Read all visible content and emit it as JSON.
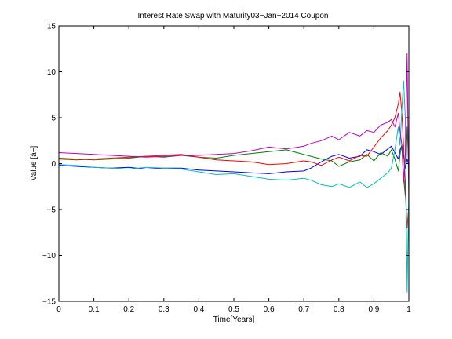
{
  "chart_data": {
    "type": "line",
    "title": "Interest Rate Swap with Maturity03−Jan−2014 Coupon",
    "xlabel": "Time[Years]",
    "ylabel": "Value [â−]",
    "xlim": [
      0,
      1
    ],
    "ylim": [
      -15,
      15
    ],
    "xticks": [
      0,
      0.1,
      0.2,
      0.3,
      0.4,
      0.5,
      0.6,
      0.7,
      0.8,
      0.9,
      1
    ],
    "xtick_labels": [
      "0",
      "0.1",
      "0.2",
      "0.3",
      "0.4",
      "0.5",
      "0.6",
      "0.7",
      "0.8",
      "0.9",
      "1"
    ],
    "yticks": [
      -15,
      -10,
      -5,
      0,
      5,
      10,
      15
    ],
    "ytick_labels": [
      "−15",
      "−10",
      "−5",
      "0",
      "5",
      "10",
      "15"
    ],
    "grid": false,
    "legend": "none",
    "series": [
      {
        "color": "#0000ff",
        "x": [
          0,
          0.05,
          0.1,
          0.15,
          0.2,
          0.25,
          0.3,
          0.35,
          0.4,
          0.45,
          0.5,
          0.55,
          0.6,
          0.65,
          0.7,
          0.72,
          0.75,
          0.78,
          0.8,
          0.83,
          0.86,
          0.88,
          0.9,
          0.92,
          0.94,
          0.95,
          0.96,
          0.97,
          0.975,
          0.98,
          0.985,
          0.99,
          0.995,
          1
        ],
        "y": [
          -0.2,
          -0.3,
          -0.4,
          -0.5,
          -0.4,
          -0.6,
          -0.5,
          -0.5,
          -0.7,
          -0.8,
          -0.9,
          -1.0,
          -1.1,
          -0.9,
          -0.8,
          -0.5,
          0.2,
          0.8,
          1.0,
          0.6,
          0.8,
          1.5,
          1.3,
          1.0,
          1.6,
          1.9,
          1.2,
          0.5,
          1.5,
          2.0,
          0.8,
          -0.5,
          0.5,
          -0.2
        ]
      },
      {
        "color": "#008000",
        "x": [
          0,
          0.05,
          0.1,
          0.15,
          0.2,
          0.25,
          0.3,
          0.35,
          0.4,
          0.45,
          0.5,
          0.55,
          0.6,
          0.65,
          0.7,
          0.72,
          0.75,
          0.78,
          0.8,
          0.83,
          0.86,
          0.88,
          0.9,
          0.92,
          0.94,
          0.95,
          0.96,
          0.97,
          0.975,
          0.98,
          0.985,
          0.99,
          0.995,
          1
        ],
        "y": [
          0.6,
          0.5,
          0.4,
          0.5,
          0.6,
          0.8,
          0.7,
          0.9,
          0.7,
          0.6,
          0.9,
          1.1,
          1.3,
          1.5,
          1.0,
          0.8,
          0.5,
          0.3,
          -0.3,
          0.2,
          0.4,
          1.0,
          0.3,
          1.2,
          0.8,
          1.5,
          0.5,
          -0.8,
          1.0,
          2.0,
          -1.5,
          -3.5,
          4.0,
          -0.5
        ]
      },
      {
        "color": "#ff0000",
        "x": [
          0,
          0.05,
          0.1,
          0.15,
          0.2,
          0.25,
          0.3,
          0.35,
          0.4,
          0.45,
          0.5,
          0.55,
          0.6,
          0.65,
          0.7,
          0.72,
          0.75,
          0.78,
          0.8,
          0.83,
          0.86,
          0.88,
          0.9,
          0.92,
          0.94,
          0.95,
          0.96,
          0.97,
          0.975,
          0.98,
          0.985,
          0.99,
          0.995,
          1
        ],
        "y": [
          0.5,
          0.4,
          0.5,
          0.6,
          0.7,
          0.8,
          0.9,
          1.0,
          0.7,
          0.4,
          0.3,
          0.2,
          -0.1,
          0.0,
          0.3,
          0.2,
          -0.2,
          0.4,
          0.7,
          0.3,
          0.9,
          0.8,
          1.8,
          2.8,
          3.6,
          4.2,
          5.0,
          6.5,
          7.8,
          5.5,
          2.0,
          -3.0,
          -7.0,
          -4.5
        ]
      },
      {
        "color": "#00bfbf",
        "x": [
          0,
          0.05,
          0.1,
          0.15,
          0.2,
          0.25,
          0.3,
          0.35,
          0.4,
          0.45,
          0.5,
          0.55,
          0.6,
          0.65,
          0.7,
          0.72,
          0.75,
          0.78,
          0.8,
          0.83,
          0.86,
          0.88,
          0.9,
          0.92,
          0.94,
          0.95,
          0.96,
          0.97,
          0.975,
          0.98,
          0.985,
          0.99,
          0.995,
          1
        ],
        "y": [
          -0.1,
          -0.2,
          -0.4,
          -0.5,
          -0.6,
          -0.4,
          -0.5,
          -0.6,
          -0.9,
          -1.2,
          -1.1,
          -1.4,
          -1.7,
          -1.8,
          -1.6,
          -1.8,
          -2.3,
          -2.5,
          -2.2,
          -2.6,
          -2.0,
          -2.6,
          -2.2,
          -1.6,
          -1.0,
          -0.5,
          1.5,
          4.0,
          2.0,
          6.0,
          9.0,
          5.0,
          -14.0,
          -3.0
        ]
      },
      {
        "color": "#bf00bf",
        "x": [
          0,
          0.05,
          0.1,
          0.15,
          0.2,
          0.25,
          0.3,
          0.35,
          0.4,
          0.45,
          0.5,
          0.55,
          0.6,
          0.65,
          0.7,
          0.72,
          0.75,
          0.78,
          0.8,
          0.83,
          0.86,
          0.88,
          0.9,
          0.92,
          0.94,
          0.95,
          0.96,
          0.97,
          0.975,
          0.98,
          0.985,
          0.99,
          0.995,
          1
        ],
        "y": [
          1.2,
          1.1,
          1.0,
          0.9,
          0.8,
          0.7,
          0.8,
          0.9,
          0.9,
          1.0,
          1.1,
          1.4,
          1.8,
          1.6,
          1.9,
          2.2,
          2.5,
          3.0,
          2.6,
          3.4,
          3.0,
          3.6,
          3.4,
          4.2,
          4.5,
          4.8,
          4.0,
          5.5,
          3.5,
          2.0,
          -2.0,
          1.0,
          12.0,
          -5.0
        ]
      }
    ]
  }
}
